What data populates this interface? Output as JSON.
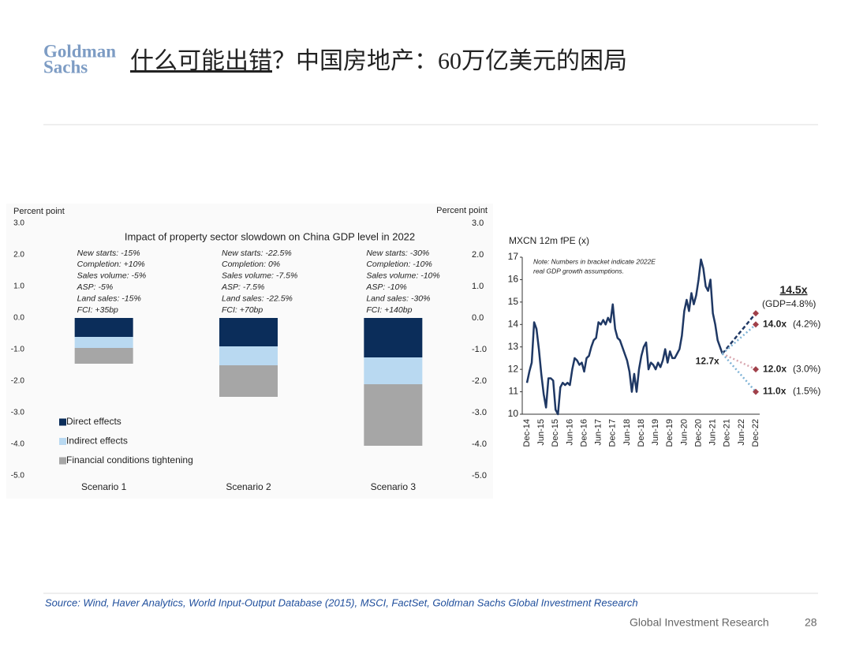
{
  "header": {
    "logo": [
      "Goldman",
      "Sachs"
    ],
    "title_emphasis": "什么可能出错",
    "title_rest": "？中国房地产：60万亿美元的困局"
  },
  "chart_data": [
    {
      "type": "bar",
      "stacked": true,
      "title": "Impact of property sector slowdown on China GDP level in 2022",
      "y_label": "Percent point",
      "y2_label": "Percent point",
      "categories": [
        "Scenario 1",
        "Scenario 2",
        "Scenario 3"
      ],
      "annotations": [
        [
          "New starts: -15%",
          "Completion: +10%",
          "Sales volume: -5%",
          "ASP: -5%",
          "Land sales: -15%",
          "FCI: +35bp"
        ],
        [
          "New starts: -22.5%",
          "Completion: 0%",
          "Sales volume: -7.5%",
          "ASP: -7.5%",
          "Land sales: -22.5%",
          "FCI: +70bp"
        ],
        [
          "New starts: -30%",
          "Completion: -10%",
          "Sales volume: -10%",
          "ASP: -10%",
          "Land sales: -30%",
          "FCI: +140bp"
        ]
      ],
      "series": [
        {
          "name": "Direct effects",
          "color": "#0b2d5a",
          "values": [
            -0.6,
            -0.9,
            -1.25
          ]
        },
        {
          "name": "Indirect effects",
          "color": "#b9d9f1",
          "values": [
            -0.35,
            -0.6,
            -0.85
          ]
        },
        {
          "name": "Financial conditions tightening",
          "color": "#a6a6a6",
          "values": [
            -0.5,
            -1.0,
            -1.95
          ]
        }
      ],
      "ylim": [
        -5,
        3
      ],
      "yticks": [
        {
          "value": 3,
          "label": "3.0"
        },
        {
          "value": 2,
          "label": "2.0"
        },
        {
          "value": 1,
          "label": "1.0"
        },
        {
          "value": 0,
          "label": "0.0"
        },
        {
          "value": -1,
          "label": "-1.0"
        },
        {
          "value": -2,
          "label": "-2.0"
        },
        {
          "value": -3,
          "label": "-3.0"
        },
        {
          "value": -4,
          "label": "-4.0"
        },
        {
          "value": -5,
          "label": "-5.0"
        }
      ],
      "y2lim": [
        -5,
        3
      ],
      "y2ticks": [
        {
          "value": 3,
          "label": "3.0"
        },
        {
          "value": 2,
          "label": "2.0"
        },
        {
          "value": 1,
          "label": "1.0"
        },
        {
          "value": 0,
          "label": "0.0"
        },
        {
          "value": -1,
          "label": "-1.0"
        },
        {
          "value": -2,
          "label": "-2.0"
        },
        {
          "value": -3,
          "label": "-3.0"
        },
        {
          "value": -4,
          "label": "-4.0"
        },
        {
          "value": -5,
          "label": "-5.0"
        }
      ],
      "legend": "lower-left"
    },
    {
      "type": "line",
      "title": "MXCN 12m fPE (x)",
      "note": [
        "Note: Numbers in bracket indicate 2022E",
        "real GDP growth assumptions."
      ],
      "categories": [
        "Dec-14",
        null,
        null,
        null,
        null,
        null,
        "Jun-15",
        null,
        null,
        null,
        null,
        null,
        "Dec-15",
        null,
        null,
        null,
        null,
        null,
        "Jun-16",
        null,
        null,
        null,
        null,
        null,
        "Dec-16",
        null,
        null,
        null,
        null,
        null,
        "Jun-17",
        null,
        null,
        null,
        null,
        null,
        "Dec-17",
        null,
        null,
        null,
        null,
        null,
        "Jun-18",
        null,
        null,
        null,
        null,
        null,
        "Dec-18",
        null,
        null,
        null,
        null,
        null,
        "Jun-19",
        null,
        null,
        null,
        null,
        null,
        "Dec-19",
        null,
        null,
        null,
        null,
        null,
        "Jun-20",
        null,
        null,
        null,
        null,
        null,
        "Dec-20",
        null,
        null,
        null,
        null,
        null,
        "Jun-21",
        null,
        null,
        null,
        null,
        null,
        "Dec-21",
        null,
        null,
        null,
        null,
        null,
        "Jun-22",
        null,
        null,
        null,
        null,
        null,
        "Dec-22"
      ],
      "series": [
        {
          "color": "#1f3864",
          "values": [
            11.4,
            11.9,
            12.3,
            14.1,
            13.8,
            12.9,
            11.8,
            10.9,
            10.3,
            11.6,
            11.6,
            11.5,
            10.2,
            10.0,
            11.2,
            11.4,
            11.3,
            11.4,
            11.3,
            12.0,
            12.5,
            12.4,
            12.2,
            12.3,
            11.9,
            12.5,
            12.6,
            13.0,
            13.3,
            13.4,
            14.1,
            14.0,
            14.2,
            14.0,
            14.3,
            14.1,
            14.9,
            13.8,
            13.4,
            13.3,
            13.0,
            12.7,
            12.4,
            11.9,
            11.0,
            11.8,
            11.0,
            12.0,
            12.6,
            13.0,
            13.2,
            12.0,
            12.3,
            12.2,
            12.0,
            12.3,
            12.1,
            12.4,
            12.9,
            12.3,
            12.8,
            12.5,
            12.5,
            12.7,
            12.9,
            13.5,
            14.6,
            15.1,
            14.6,
            15.4,
            14.9,
            15.3,
            16.0,
            16.9,
            16.5,
            15.7,
            15.5,
            16.0,
            14.5,
            14.0,
            13.3,
            13.0,
            12.7,
            null,
            null,
            null,
            null,
            null,
            null,
            null,
            null,
            null,
            null,
            null,
            null,
            null,
            null
          ],
          "value_labels": [
            null,
            null,
            null,
            null,
            null,
            null,
            null,
            null,
            null,
            null,
            null,
            null,
            null,
            null,
            null,
            null,
            null,
            null,
            null,
            null,
            null,
            null,
            null,
            null,
            null,
            null,
            null,
            null,
            null,
            null,
            null,
            null,
            null,
            null,
            null,
            null,
            null,
            null,
            null,
            null,
            null,
            null,
            null,
            null,
            null,
            null,
            null,
            null,
            null,
            null,
            null,
            null,
            null,
            null,
            null,
            null,
            null,
            null,
            null,
            null,
            null,
            null,
            null,
            null,
            null,
            null,
            null,
            null,
            null,
            null,
            null,
            null,
            null,
            null,
            null,
            null,
            null,
            null,
            null,
            null,
            null,
            null,
            "12.7x",
            null,
            null,
            null,
            null,
            null,
            null,
            null,
            null,
            null,
            null,
            null,
            null,
            null,
            null
          ]
        }
      ],
      "projections": [
        {
          "value": 14.5,
          "label": "14.5x",
          "note": "(GDP=4.8%)",
          "color": "#1f3864",
          "style": "dashed"
        },
        {
          "value": 14.0,
          "label": "14.0x",
          "note": "(4.2%)",
          "color": "#7fb3d6",
          "style": "dotted"
        },
        {
          "value": 12.0,
          "label": "12.0x",
          "note": "(3.0%)",
          "color": "#d9a7b0",
          "style": "dotted"
        },
        {
          "value": 11.0,
          "label": "11.0x",
          "note": "(1.5%)",
          "color": "#7fb3d6",
          "style": "dotted"
        }
      ],
      "marker_color": "#a0404a",
      "ylim": [
        10,
        17
      ],
      "yticks": [
        10,
        11,
        12,
        13,
        14,
        15,
        16,
        17
      ]
    }
  ],
  "footer": {
    "source": "Source: Wind, Haver Analytics, World Input-Output Database (2015), MSCI, FactSet, Goldman Sachs Global Investment Research",
    "org": "Global Investment Research",
    "page": "28"
  }
}
